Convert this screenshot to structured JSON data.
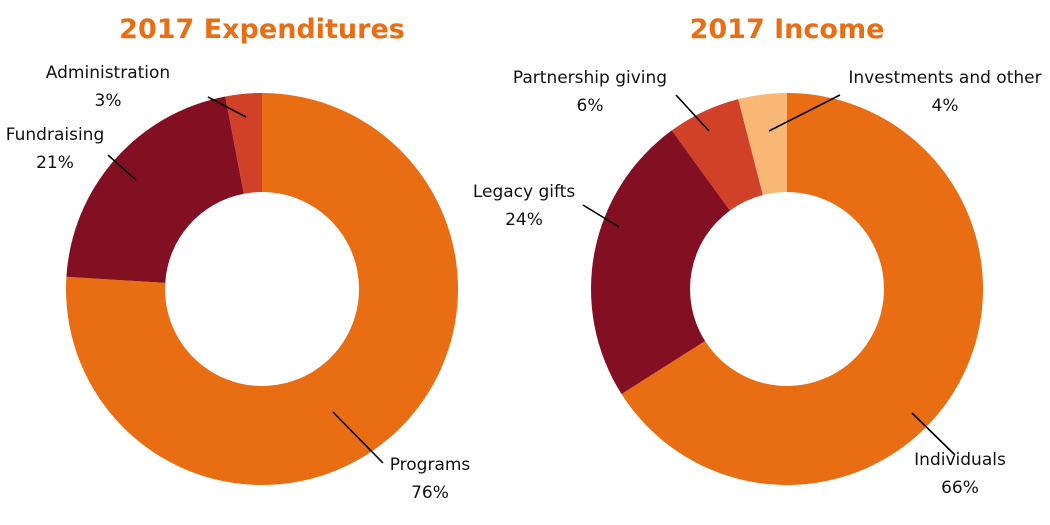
{
  "chart_data": [
    {
      "type": "pie",
      "donut": true,
      "title": "2017 Expenditures",
      "slices": [
        {
          "label": "Programs",
          "value": 76,
          "value_label": "76%",
          "color": "#E96D13"
        },
        {
          "label": "Fundraising",
          "value": 21,
          "value_label": "21%",
          "color": "#821022"
        },
        {
          "label": "Administration",
          "value": 3,
          "value_label": "3%",
          "color": "#D04128"
        }
      ]
    },
    {
      "type": "pie",
      "donut": true,
      "title": "2017 Income",
      "slices": [
        {
          "label": "Individuals",
          "value": 66,
          "value_label": "66%",
          "color": "#E96D13"
        },
        {
          "label": "Legacy gifts",
          "value": 24,
          "value_label": "24%",
          "color": "#821022"
        },
        {
          "label": "Partnership giving",
          "value": 6,
          "value_label": "6%",
          "color": "#D04128"
        },
        {
          "label": "Investments and other",
          "value": 4,
          "value_label": "4%",
          "color": "#F9B775"
        }
      ]
    }
  ]
}
